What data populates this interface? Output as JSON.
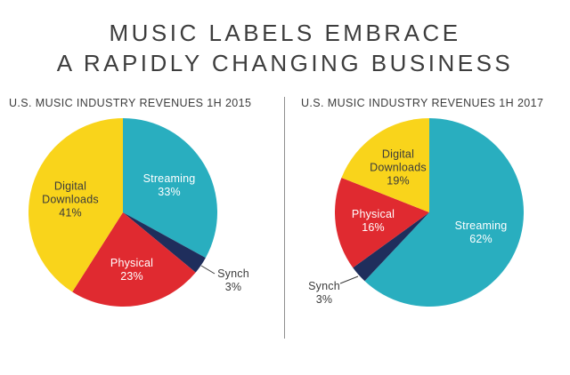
{
  "title": {
    "line1": "MUSIC LABELS EMBRACE",
    "line2": "A RAPIDLY CHANGING BUSINESS"
  },
  "palette": {
    "streaming": "#29AEBF",
    "synch": "#1F2E5C",
    "physical": "#E02A30",
    "digital_downloads": "#F9D41B",
    "text_dark": "#3B3B3B",
    "text_light": "#FFFFFF"
  },
  "chart_data": [
    {
      "type": "pie",
      "title": "U.S. MUSIC INDUSTRY REVENUES 1H 2015",
      "start_angle_deg": 0,
      "direction": "clockwise",
      "legend_position": "none",
      "slices": [
        {
          "label": "Streaming",
          "value": 33,
          "pct": "33%",
          "color": "#29AEBF",
          "label_color": "#FFFFFF",
          "label_position": "inside"
        },
        {
          "label": "Synch",
          "value": 3,
          "pct": "3%",
          "color": "#1F2E5C",
          "label_color": "#3B3B3B",
          "label_position": "outside"
        },
        {
          "label": "Physical",
          "value": 23,
          "pct": "23%",
          "color": "#E02A30",
          "label_color": "#FFFFFF",
          "label_position": "inside"
        },
        {
          "label": "Digital Downloads",
          "value": 41,
          "pct": "41%",
          "color": "#F9D41B",
          "label_color": "#3B3B3B",
          "label_position": "inside"
        }
      ]
    },
    {
      "type": "pie",
      "title": "U.S. MUSIC INDUSTRY REVENUES 1H 2017",
      "start_angle_deg": 0,
      "direction": "clockwise",
      "legend_position": "none",
      "slices": [
        {
          "label": "Streaming",
          "value": 62,
          "pct": "62%",
          "color": "#29AEBF",
          "label_color": "#FFFFFF",
          "label_position": "inside"
        },
        {
          "label": "Synch",
          "value": 3,
          "pct": "3%",
          "color": "#1F2E5C",
          "label_color": "#3B3B3B",
          "label_position": "outside"
        },
        {
          "label": "Physical",
          "value": 16,
          "pct": "16%",
          "color": "#E02A30",
          "label_color": "#FFFFFF",
          "label_position": "inside"
        },
        {
          "label": "Digital Downloads",
          "value": 19,
          "pct": "19%",
          "color": "#F9D41B",
          "label_color": "#3B3B3B",
          "label_position": "inside"
        }
      ]
    }
  ]
}
